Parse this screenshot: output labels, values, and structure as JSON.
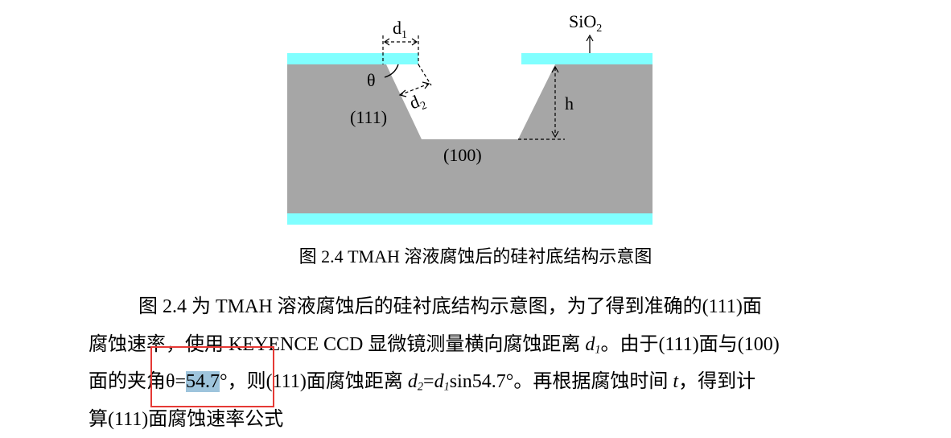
{
  "figure": {
    "labels": {
      "d1": "d",
      "d1_sub": "1",
      "d2": "d",
      "d2_sub": "2",
      "sio2": "SiO",
      "sio2_sub": "2",
      "theta": "θ",
      "h": "h",
      "plane_111": "(111)",
      "plane_100": "(100)"
    },
    "colors": {
      "substrate": "#a6a6a6",
      "oxide": "#80ffff",
      "annotation": "#000000"
    }
  },
  "caption": "图 2.4 TMAH 溶液腐蚀后的硅衬底结构示意图",
  "paragraph": {
    "line1": "图 2.4 为 TMAH 溶液腐蚀后的硅衬底结构示意图，为了得到准确的(111)面",
    "line2_a": "腐蚀速率，使用 KEYENCE CCD 显微镜测量横向腐蚀距离 ",
    "line2_var": "d",
    "line2_var_sub": "1",
    "line2_b": "。由于(111)面与(100)",
    "line3_a": "面的夹角θ=",
    "line3_selected": "54.7",
    "line3_b": "°，则(111)面腐蚀距离 ",
    "line3_var1": "d",
    "line3_var1_sub": "2",
    "line3_eq": "=",
    "line3_var2": "d",
    "line3_var2_sub": "1",
    "line3_c": "sin54.7°。再根据腐蚀时间 ",
    "line3_var3": "t",
    "line3_d": "，得到计",
    "line4": "算(111)面腐蚀速率公式"
  }
}
